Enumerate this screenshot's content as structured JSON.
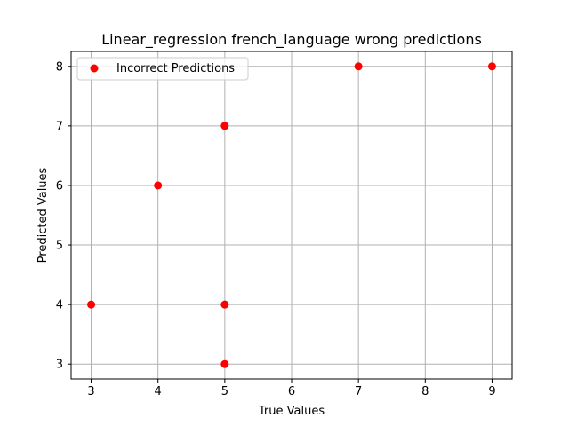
{
  "chart_data": {
    "type": "scatter",
    "title": "Linear_regression french_language wrong predictions",
    "xlabel": "True Values",
    "ylabel": "Predicted Values",
    "xlim": [
      2.7,
      9.3
    ],
    "ylim": [
      2.75,
      8.25
    ],
    "xticks": [
      3,
      4,
      5,
      6,
      7,
      8,
      9
    ],
    "yticks": [
      3,
      4,
      5,
      6,
      7,
      8
    ],
    "grid": true,
    "legend_position": "top-left",
    "series": [
      {
        "name": "Incorrect Predictions",
        "color": "#ff0000",
        "points": [
          {
            "x": 3,
            "y": 4
          },
          {
            "x": 4,
            "y": 6
          },
          {
            "x": 5,
            "y": 7
          },
          {
            "x": 5,
            "y": 4
          },
          {
            "x": 5,
            "y": 3
          },
          {
            "x": 7,
            "y": 8
          },
          {
            "x": 9,
            "y": 8
          }
        ]
      }
    ]
  }
}
